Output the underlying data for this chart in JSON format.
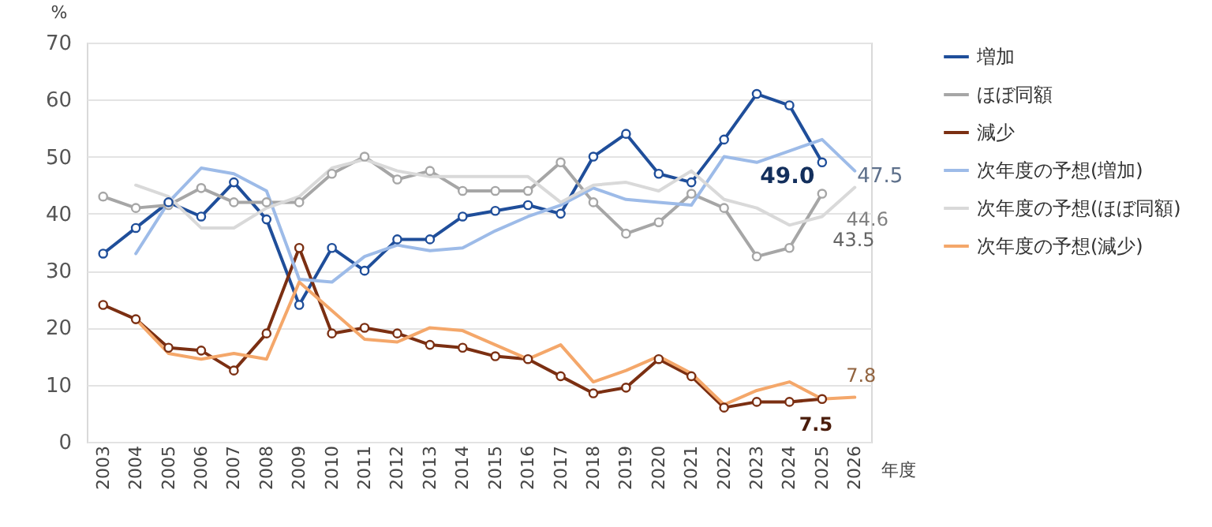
{
  "chart_data": {
    "type": "line",
    "xlabel": "年度",
    "ylabel": "%",
    "categories": [
      "2003",
      "2004",
      "2005",
      "2006",
      "2007",
      "2008",
      "2009",
      "2010",
      "2011",
      "2012",
      "2013",
      "2014",
      "2015",
      "2016",
      "2017",
      "2018",
      "2019",
      "2020",
      "2021",
      "2022",
      "2023",
      "2024",
      "2025",
      "2026"
    ],
    "ylim": [
      0,
      70
    ],
    "yticks": [
      0,
      10,
      20,
      30,
      40,
      50,
      60,
      70
    ],
    "grid": "y",
    "legend": "right",
    "series": [
      {
        "name": "増加",
        "color": "#1f4e9a",
        "marker": "circle",
        "values": [
          33,
          37.5,
          42,
          39.5,
          45.5,
          39,
          24,
          34,
          30,
          35.5,
          35.5,
          39.5,
          40.5,
          41.5,
          40,
          50,
          54,
          47,
          45.5,
          53,
          61,
          59,
          49.0,
          null
        ]
      },
      {
        "name": "ほぼ同額",
        "color": "#a6a6a6",
        "marker": "circle",
        "values": [
          43,
          41,
          41.5,
          44.5,
          42,
          42,
          42,
          47,
          50,
          46,
          47.5,
          44,
          44,
          44,
          49,
          42,
          36.5,
          38.5,
          43.5,
          41,
          32.5,
          34,
          43.5,
          null
        ]
      },
      {
        "name": "減少",
        "color": "#7b2f12",
        "marker": "circle",
        "values": [
          24,
          21.5,
          16.5,
          16,
          12.5,
          19,
          34,
          19,
          20,
          19,
          17,
          16.5,
          15,
          14.5,
          11.5,
          8.5,
          9.5,
          14.5,
          11.5,
          6,
          7,
          7,
          7.5,
          null
        ]
      },
      {
        "name": "次年度の予想(増加)",
        "color": "#9dbbe8",
        "marker": "none",
        "values": [
          null,
          33,
          42,
          48,
          47,
          44,
          28.5,
          28,
          32.5,
          34.5,
          33.5,
          34,
          37,
          39.5,
          41.5,
          44.5,
          42.5,
          42,
          41.5,
          50,
          49,
          51,
          53,
          47.5
        ]
      },
      {
        "name": "次年度の予想(ほぼ同額)",
        "color": "#d9d9d9",
        "marker": "none",
        "values": [
          null,
          45,
          43,
          37.5,
          37.5,
          41,
          43,
          48,
          49.5,
          47.5,
          46.5,
          46.5,
          46.5,
          46.5,
          42,
          45,
          45.5,
          44,
          47.5,
          42.5,
          41,
          38,
          39.5,
          44.6
        ]
      },
      {
        "name": "次年度の予想(減少)",
        "color": "#f4a76a",
        "marker": "none",
        "values": [
          null,
          21.5,
          15.5,
          14.5,
          15.5,
          14.5,
          28,
          23,
          18,
          17.5,
          20,
          19.5,
          17,
          14.5,
          17,
          10.5,
          12.5,
          15,
          12,
          6.5,
          9,
          10.5,
          7.5,
          7.8
        ]
      }
    ],
    "annotations": [
      {
        "text": "49.0",
        "x": "2025",
        "y": 49.0
      },
      {
        "text": "47.5",
        "x": "2026",
        "y": 47.5
      },
      {
        "text": "43.5",
        "x": "2025",
        "y": 43.5
      },
      {
        "text": "44.6",
        "x": "2026",
        "y": 44.6
      },
      {
        "text": "7.5",
        "x": "2025",
        "y": 7.5
      },
      {
        "text": "7.8",
        "x": "2026",
        "y": 7.8
      }
    ]
  }
}
